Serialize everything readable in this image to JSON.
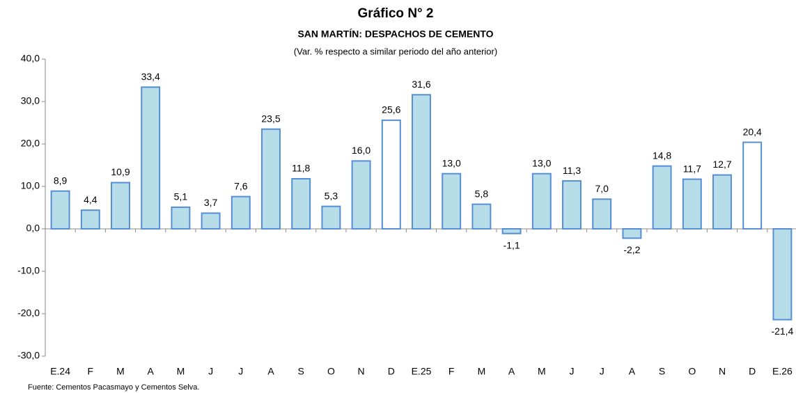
{
  "chart_data": {
    "type": "bar",
    "title": "Gráfico N° 2",
    "subtitle": "SAN MARTÍN: DESPACHOS DE CEMENTO",
    "note": "(Var. % respecto a similar periodo del año anterior)",
    "source": "Fuente: Cementos Pacasmayo y Cementos Selva.",
    "categories": [
      "E.24",
      "F",
      "M",
      "A",
      "M",
      "J",
      "J",
      "A",
      "S",
      "O",
      "N",
      "D",
      "E.25",
      "F",
      "M",
      "A",
      "M",
      "J",
      "J",
      "A",
      "S",
      "O",
      "N",
      "D",
      "E.26"
    ],
    "values": [
      8.9,
      4.4,
      10.9,
      33.4,
      5.1,
      3.7,
      7.6,
      23.5,
      11.8,
      5.3,
      16.0,
      25.6,
      31.6,
      13.0,
      5.8,
      -1.1,
      13.0,
      11.3,
      7.0,
      -2.2,
      14.8,
      11.7,
      12.7,
      20.4,
      -21.4
    ],
    "value_labels": [
      "8,9",
      "4,4",
      "10,9",
      "33,4",
      "5,1",
      "3,7",
      "7,6",
      "23,5",
      "11,8",
      "5,3",
      "16,0",
      "25,6",
      "31,6",
      "13,0",
      "5,8",
      "-1,1",
      "13,0",
      "11,3",
      "7,0",
      "-2,2",
      "14,8",
      "11,7",
      "12,7",
      "20,4",
      "-21,4"
    ],
    "colors": [
      "#b7dde8",
      "#b7dde8",
      "#b7dde8",
      "#b7dde8",
      "#b7dde8",
      "#b7dde8",
      "#b7dde8",
      "#b7dde8",
      "#b7dde8",
      "#b7dde8",
      "#b7dde8",
      "#ffffff",
      "#b7dde8",
      "#b7dde8",
      "#b7dde8",
      "#b7dde8",
      "#b7dde8",
      "#b7dde8",
      "#b7dde8",
      "#b7dde8",
      "#b7dde8",
      "#b7dde8",
      "#b7dde8",
      "#ffffff",
      "#b7dde8"
    ],
    "edge_color": "#558ed5",
    "ylim": [
      -30,
      40
    ],
    "yticks": [
      {
        "value": -30,
        "label": "-30,0"
      },
      {
        "value": -20,
        "label": "-20,0"
      },
      {
        "value": -10,
        "label": "-10,0"
      },
      {
        "value": 0,
        "label": "0,0"
      },
      {
        "value": 10,
        "label": "10,0"
      },
      {
        "value": 20,
        "label": "20,0"
      },
      {
        "value": 30,
        "label": "30,0"
      },
      {
        "value": 40,
        "label": "40,0"
      }
    ]
  }
}
